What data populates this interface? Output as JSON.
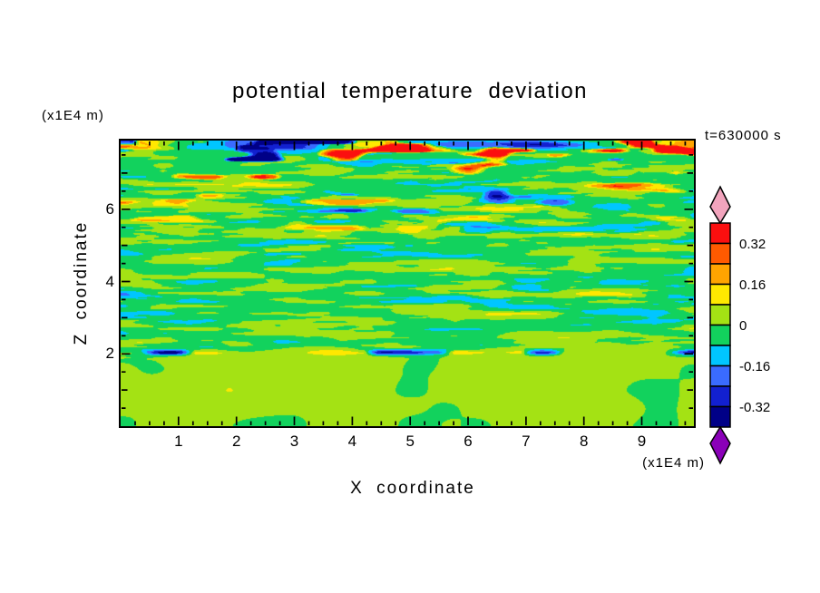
{
  "chart_data": {
    "type": "heatmap",
    "title": "potential temperature deviation",
    "time_annotation": "t=630000 s",
    "xlabel": "X coordinate",
    "ylabel": "Z coordinate",
    "x_unit": "(x1E4 m)",
    "y_unit": "(x1E4 m)",
    "xlim": [
      0,
      9.9
    ],
    "ylim": [
      0,
      7.9
    ],
    "x_ticks": [
      1,
      2,
      3,
      4,
      5,
      6,
      7,
      8,
      9
    ],
    "y_ticks": [
      2,
      4,
      6
    ],
    "x_minor_step": 0.25,
    "y_minor_step": 0.5,
    "legend_position": "right",
    "grid": false,
    "colorbar": {
      "labels": [
        "0.32",
        "0.16",
        "0",
        "-0.16",
        "-0.32"
      ],
      "label_values": [
        0.32,
        0.16,
        0,
        -0.16,
        -0.32
      ],
      "levels": [
        -0.4,
        -0.32,
        -0.24,
        -0.16,
        -0.08,
        0,
        0.08,
        0.16,
        0.24,
        0.32,
        0.4
      ],
      "colors": [
        "#8a00b8",
        "#000087",
        "#1220d0",
        "#3a6bff",
        "#00c6ff",
        "#12d25d",
        "#a4e214",
        "#ffe800",
        "#ffa400",
        "#ff5a00",
        "#fb0f0f",
        "#f2a4bd"
      ],
      "note": "colors run low-to-high; first entry = below -0.4 (bottom arrow), last = above 0.4 (top arrow)"
    },
    "field": {
      "seed": 7,
      "base_bias": -0.015,
      "bottom_bias": 0.022,
      "band_z": 2.02,
      "transition_z": 1.8,
      "description": "turbulent shear-layer field: horizontally streaky temperature anomalies above z=2 (mostly green/yellow-green, amplitude growing with height into orange/red and dark-blue streaks near the domain top), a thin intense yellow band with dark dashes at z~2, smooth low-amplitude green/yellow-green convective blobs below z=2"
    }
  }
}
